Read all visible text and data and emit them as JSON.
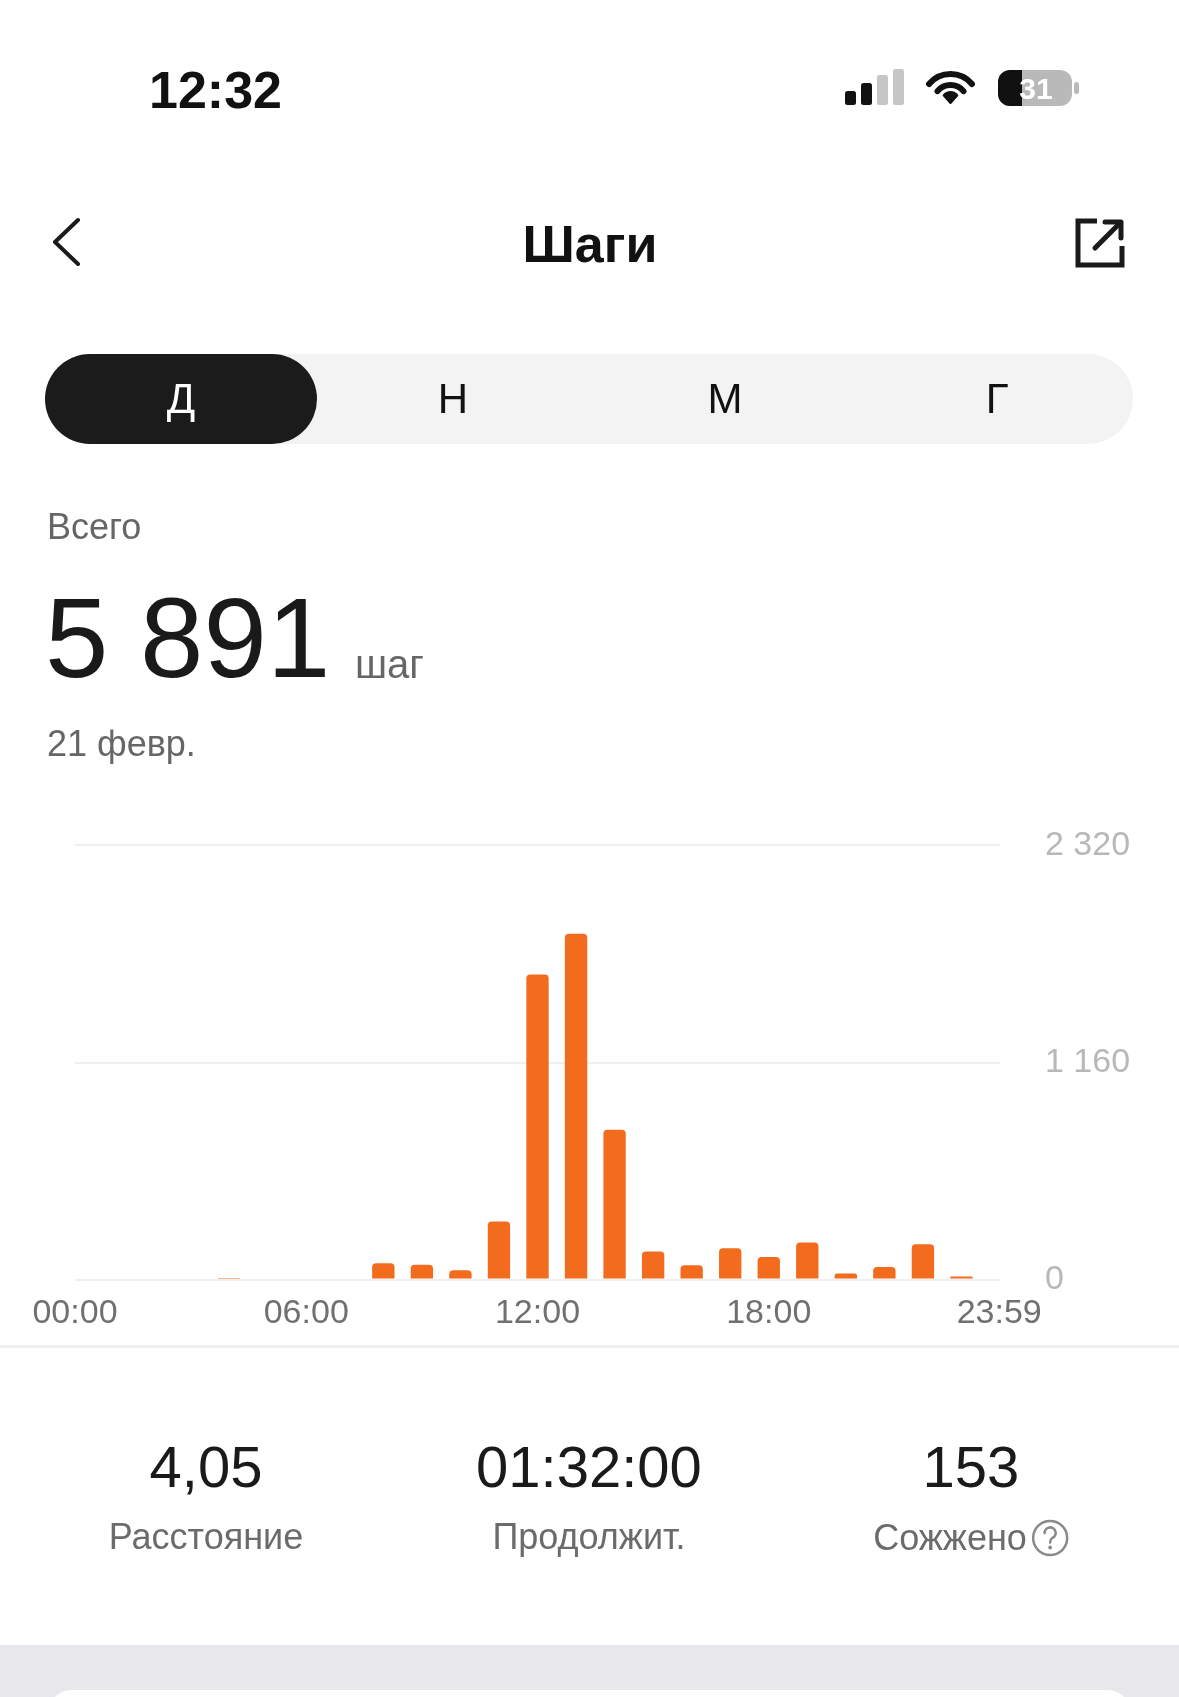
{
  "chart_data": {
    "type": "bar",
    "title": "Шаги",
    "annotations": [
      "12:32",
      "31",
      "Д",
      "Н",
      "М",
      "Г",
      "Всего",
      "5 891",
      "шаг",
      "21 февр.",
      "4,05",
      "Расстояние",
      "01:32:00",
      "Продолжит.",
      "153",
      "Сожжено"
    ],
    "x": [
      4,
      8,
      9,
      10,
      11,
      12,
      13,
      14,
      15,
      16,
      17,
      18,
      19,
      20,
      21,
      22,
      23
    ],
    "values": [
      9,
      88,
      80,
      50,
      310,
      1630,
      1848,
      801,
      150,
      77,
      167,
      121,
      198,
      33,
      67,
      189,
      17
    ],
    "color": "#f36b1c",
    "xlim": [
      0,
      24
    ],
    "xticks": [
      {
        "value": 0,
        "label": "00:00"
      },
      {
        "value": 6,
        "label": "06:00"
      },
      {
        "value": 12,
        "label": "12:00"
      },
      {
        "value": 18,
        "label": "18:00"
      },
      {
        "value": 23.98,
        "label": "23:59"
      }
    ],
    "ylim": [
      0,
      2320
    ],
    "yticks": [
      0,
      {
        "value": 1160,
        "label": "1 160"
      },
      {
        "value": 2320,
        "label": "2 320"
      }
    ],
    "grid": "y"
  }
}
